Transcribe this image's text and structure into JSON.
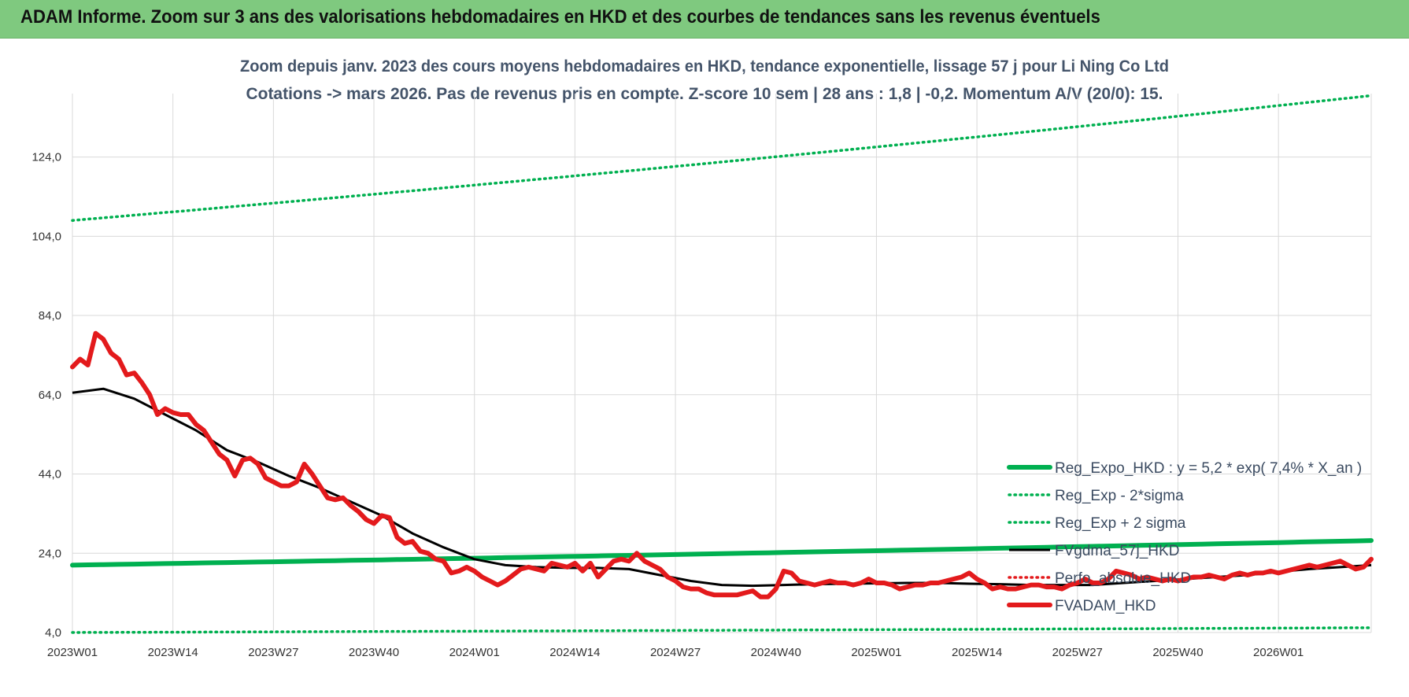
{
  "banner": {
    "title": "ADAM Informe. Zoom sur 3 ans des valorisations hebdomadaires en HKD et des courbes de tendances sans les revenus éventuels"
  },
  "colors": {
    "banner_bg": "#7fc97f",
    "trend_green": "#00b050",
    "price_red": "#e31a1c",
    "smooth_black": "#000000",
    "grid": "#d9d9d9",
    "subtitle": "#44546a"
  },
  "chart_data": {
    "type": "line",
    "title_lines": [
      "Zoom depuis janv. 2023 des cours moyens hebdomadaires en HKD, tendance exponentielle, lissage 57 j pour Li Ning Co Ltd",
      "Cotations -> mars 2026. Pas de revenus pris en compte. Z-score 10 sem | 28 ans : 1,8 | -0,2. Momentum A/V (20/0): 15."
    ],
    "ylim": [
      4,
      140
    ],
    "y_ticks": [
      4,
      24,
      44,
      64,
      84,
      104,
      124
    ],
    "y_tick_labels": [
      "4,0",
      "24,0",
      "44,0",
      "64,0",
      "84,0",
      "104,0",
      "124,0"
    ],
    "x_tick_labels": [
      "2023W01",
      "2023W14",
      "2023W27",
      "2023W40",
      "2024W01",
      "2024W14",
      "2024W27",
      "2024W40",
      "2025W01",
      "2025W14",
      "2025W27",
      "2025W40",
      "2026W01"
    ],
    "x_tick_week_index": [
      0,
      13,
      26,
      39,
      52,
      65,
      78,
      91,
      104,
      117,
      130,
      143,
      156
    ],
    "n_weeks": 169,
    "grid": true,
    "legend_position": "bottom-right",
    "legend": [
      {
        "label": "Reg_Expo_HKD : y = 5,2 * exp( 7,4% *  X_an )",
        "style": "thick-solid",
        "color": "#00b050"
      },
      {
        "label": "Reg_Exp - 2*sigma",
        "style": "dotted",
        "color": "#00b050"
      },
      {
        "label": "Reg_Exp + 2 sigma",
        "style": "dotted",
        "color": "#00b050"
      },
      {
        "label": "FVgdma_57j_HKD",
        "style": "solid",
        "color": "#000000"
      },
      {
        "label": "Perfo_absolue_HKD",
        "style": "dotted",
        "color": "#e31a1c"
      },
      {
        "label": "FVADAM_HKD",
        "style": "thick-solid",
        "color": "#e31a1c"
      }
    ],
    "series": [
      {
        "name": "Reg_Expo_HKD",
        "style": "thick-solid",
        "color": "#00b050",
        "start": 21.0,
        "end": 27.2
      },
      {
        "name": "Reg_Exp + 2 sigma",
        "style": "dotted",
        "color": "#00b050",
        "start": 108.0,
        "end": 139.5
      },
      {
        "name": "Reg_Exp - 2*sigma",
        "style": "dotted",
        "color": "#00b050",
        "start": 4.0,
        "end": 5.2
      },
      {
        "name": "FVgdma_57j_HKD",
        "style": "solid",
        "color": "#000000",
        "points": [
          [
            0,
            64.5
          ],
          [
            4,
            65.5
          ],
          [
            8,
            63.0
          ],
          [
            12,
            59.0
          ],
          [
            16,
            55.0
          ],
          [
            20,
            50.0
          ],
          [
            24,
            47.0
          ],
          [
            28,
            43.5
          ],
          [
            32,
            40.5
          ],
          [
            36,
            37.0
          ],
          [
            40,
            33.5
          ],
          [
            44,
            29.0
          ],
          [
            48,
            25.5
          ],
          [
            52,
            22.5
          ],
          [
            56,
            21.0
          ],
          [
            60,
            20.5
          ],
          [
            64,
            20.3
          ],
          [
            68,
            20.3
          ],
          [
            72,
            20.0
          ],
          [
            76,
            18.5
          ],
          [
            80,
            17.0
          ],
          [
            84,
            16.0
          ],
          [
            88,
            15.8
          ],
          [
            92,
            16.0
          ],
          [
            96,
            16.2
          ],
          [
            100,
            16.3
          ],
          [
            104,
            16.4
          ],
          [
            108,
            16.5
          ],
          [
            112,
            16.5
          ],
          [
            116,
            16.3
          ],
          [
            120,
            16.2
          ],
          [
            124,
            16.0
          ],
          [
            128,
            16.0
          ],
          [
            132,
            16.0
          ],
          [
            136,
            16.5
          ],
          [
            140,
            17.0
          ],
          [
            144,
            17.5
          ],
          [
            148,
            18.0
          ],
          [
            152,
            18.5
          ],
          [
            156,
            19.3
          ],
          [
            160,
            20.0
          ],
          [
            164,
            20.5
          ],
          [
            168,
            21.0
          ]
        ]
      },
      {
        "name": "FVADAM_HKD",
        "style": "thick-solid",
        "color": "#e31a1c",
        "points": [
          [
            0,
            71.0
          ],
          [
            1,
            73.0
          ],
          [
            2,
            71.5
          ],
          [
            3,
            79.5
          ],
          [
            4,
            78.0
          ],
          [
            5,
            74.5
          ],
          [
            6,
            73.0
          ],
          [
            7,
            69.0
          ],
          [
            8,
            69.5
          ],
          [
            9,
            67.0
          ],
          [
            10,
            64.0
          ],
          [
            11,
            59.0
          ],
          [
            12,
            60.5
          ],
          [
            13,
            59.5
          ],
          [
            14,
            59.0
          ],
          [
            15,
            59.0
          ],
          [
            16,
            56.5
          ],
          [
            17,
            55.0
          ],
          [
            18,
            52.0
          ],
          [
            19,
            49.0
          ],
          [
            20,
            47.5
          ],
          [
            21,
            43.5
          ],
          [
            22,
            47.5
          ],
          [
            23,
            48.0
          ],
          [
            24,
            46.5
          ],
          [
            25,
            43.0
          ],
          [
            26,
            42.0
          ],
          [
            27,
            41.0
          ],
          [
            28,
            41.0
          ],
          [
            29,
            42.0
          ],
          [
            30,
            46.5
          ],
          [
            31,
            44.0
          ],
          [
            32,
            41.0
          ],
          [
            33,
            38.0
          ],
          [
            34,
            37.5
          ],
          [
            35,
            38.0
          ],
          [
            36,
            36.0
          ],
          [
            37,
            34.5
          ],
          [
            38,
            32.5
          ],
          [
            39,
            31.5
          ],
          [
            40,
            33.5
          ],
          [
            41,
            33.0
          ],
          [
            42,
            28.0
          ],
          [
            43,
            26.5
          ],
          [
            44,
            27.0
          ],
          [
            45,
            24.5
          ],
          [
            46,
            24.0
          ],
          [
            47,
            22.5
          ],
          [
            48,
            22.0
          ],
          [
            49,
            19.0
          ],
          [
            50,
            19.5
          ],
          [
            51,
            20.5
          ],
          [
            52,
            19.5
          ],
          [
            53,
            18.0
          ],
          [
            54,
            17.0
          ],
          [
            55,
            16.0
          ],
          [
            56,
            17.0
          ],
          [
            57,
            18.5
          ],
          [
            58,
            20.0
          ],
          [
            59,
            20.5
          ],
          [
            60,
            20.0
          ],
          [
            61,
            19.5
          ],
          [
            62,
            21.5
          ],
          [
            63,
            21.0
          ],
          [
            64,
            20.5
          ],
          [
            65,
            21.5
          ],
          [
            66,
            19.5
          ],
          [
            67,
            21.5
          ],
          [
            68,
            18.0
          ],
          [
            69,
            20.0
          ],
          [
            70,
            22.0
          ],
          [
            71,
            22.5
          ],
          [
            72,
            22.0
          ],
          [
            73,
            24.0
          ],
          [
            74,
            22.0
          ],
          [
            75,
            21.0
          ],
          [
            76,
            20.0
          ],
          [
            77,
            18.0
          ],
          [
            78,
            17.0
          ],
          [
            79,
            15.5
          ],
          [
            80,
            15.0
          ],
          [
            81,
            15.0
          ],
          [
            82,
            14.0
          ],
          [
            83,
            13.5
          ],
          [
            84,
            13.5
          ],
          [
            85,
            13.5
          ],
          [
            86,
            13.5
          ],
          [
            87,
            14.0
          ],
          [
            88,
            14.5
          ],
          [
            89,
            13.0
          ],
          [
            90,
            13.0
          ],
          [
            91,
            15.0
          ],
          [
            92,
            19.5
          ],
          [
            93,
            19.0
          ],
          [
            94,
            17.0
          ],
          [
            95,
            16.5
          ],
          [
            96,
            16.0
          ],
          [
            97,
            16.5
          ],
          [
            98,
            17.0
          ],
          [
            99,
            16.5
          ],
          [
            100,
            16.5
          ],
          [
            101,
            16.0
          ],
          [
            102,
            16.5
          ],
          [
            103,
            17.5
          ],
          [
            104,
            16.5
          ],
          [
            105,
            16.5
          ],
          [
            106,
            16.0
          ],
          [
            107,
            15.0
          ],
          [
            108,
            15.5
          ],
          [
            109,
            16.0
          ],
          [
            110,
            16.0
          ],
          [
            111,
            16.5
          ],
          [
            112,
            16.5
          ],
          [
            113,
            17.0
          ],
          [
            114,
            17.5
          ],
          [
            115,
            18.0
          ],
          [
            116,
            19.0
          ],
          [
            117,
            17.5
          ],
          [
            118,
            16.5
          ],
          [
            119,
            15.0
          ],
          [
            120,
            15.5
          ],
          [
            121,
            15.0
          ],
          [
            122,
            15.0
          ],
          [
            123,
            15.5
          ],
          [
            124,
            16.0
          ],
          [
            125,
            16.0
          ],
          [
            126,
            15.5
          ],
          [
            127,
            15.5
          ],
          [
            128,
            15.0
          ],
          [
            129,
            16.0
          ],
          [
            130,
            16.5
          ],
          [
            131,
            17.5
          ],
          [
            132,
            16.5
          ],
          [
            133,
            16.5
          ],
          [
            134,
            17.5
          ],
          [
            135,
            19.5
          ],
          [
            136,
            19.0
          ],
          [
            137,
            18.5
          ],
          [
            138,
            17.5
          ],
          [
            139,
            18.0
          ],
          [
            140,
            17.5
          ],
          [
            141,
            17.0
          ],
          [
            142,
            17.5
          ],
          [
            143,
            17.0
          ],
          [
            144,
            17.5
          ],
          [
            145,
            18.0
          ],
          [
            146,
            18.0
          ],
          [
            147,
            18.5
          ],
          [
            148,
            18.0
          ],
          [
            149,
            17.5
          ],
          [
            150,
            18.5
          ],
          [
            151,
            19.0
          ],
          [
            152,
            18.5
          ],
          [
            153,
            19.0
          ],
          [
            154,
            19.0
          ],
          [
            155,
            19.5
          ],
          [
            156,
            19.0
          ],
          [
            157,
            19.5
          ],
          [
            158,
            20.0
          ],
          [
            159,
            20.5
          ],
          [
            160,
            21.0
          ],
          [
            161,
            20.5
          ],
          [
            162,
            21.0
          ],
          [
            163,
            21.5
          ],
          [
            164,
            22.0
          ],
          [
            165,
            21.0
          ],
          [
            166,
            20.0
          ],
          [
            167,
            20.5
          ],
          [
            168,
            22.5
          ]
        ]
      },
      {
        "name": "Perfo_absolue_HKD",
        "style": "dotted",
        "color": "#e31a1c",
        "points": []
      }
    ]
  }
}
